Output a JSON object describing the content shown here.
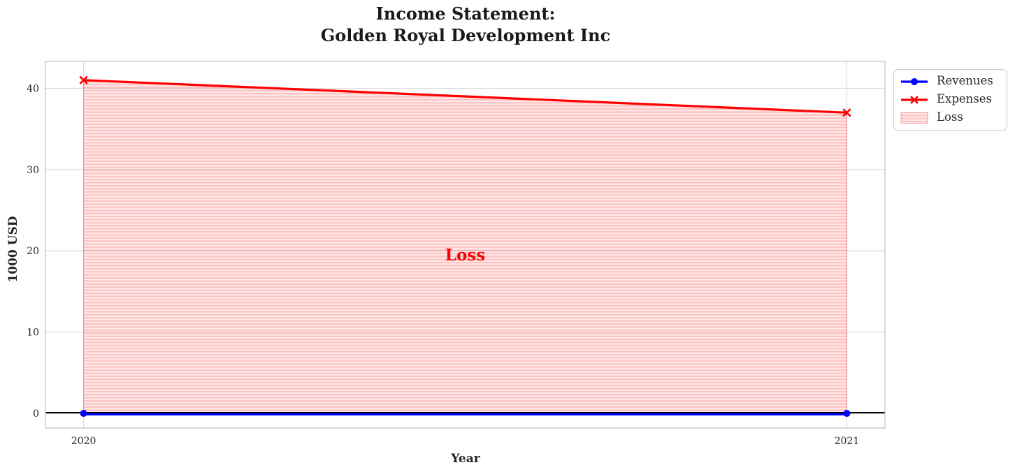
{
  "chart_data": {
    "type": "line",
    "title_lines": [
      "Income Statement:",
      "Golden Royal Development Inc"
    ],
    "xlabel": "Year",
    "ylabel": "1000 USD",
    "x": [
      2020,
      2021
    ],
    "series": [
      {
        "name": "Revenues",
        "values": [
          0,
          0
        ],
        "color": "#0000ff",
        "marker": "circle"
      },
      {
        "name": "Expenses",
        "values": [
          41,
          37
        ],
        "color": "#ff0000",
        "marker": "x"
      }
    ],
    "fill_between": {
      "name": "Loss",
      "upper_series": "Expenses",
      "lower_series": "Revenues",
      "hatch": "horizontal-stripes",
      "base_color": "#ff0000"
    },
    "annotation": {
      "text": "Loss",
      "x": 2020.5,
      "y": 19.5,
      "color": "#ff0000"
    },
    "xticks": [
      2020,
      2021
    ],
    "yticks": [
      0,
      10,
      20,
      30,
      40
    ],
    "xlim": [
      2019.95,
      2021.05
    ],
    "ylim": [
      -1.8,
      43.3
    ],
    "grid": true,
    "zero_line": 0,
    "legend_position": "upper right, outside axes"
  },
  "colors": {
    "revenues": "#0000ff",
    "expenses": "#ff0000",
    "loss_fill_light": "rgba(255,0,0,0.085)",
    "loss_fill_stripe": "rgba(255,0,0,0.18)",
    "loss_edge": "rgba(255,0,0,0.30)",
    "zero_line": "#000000",
    "grid": "#d9d9d9",
    "spine": "#c4c4c4",
    "title": "#1a1a1a",
    "tick": "#262626"
  }
}
